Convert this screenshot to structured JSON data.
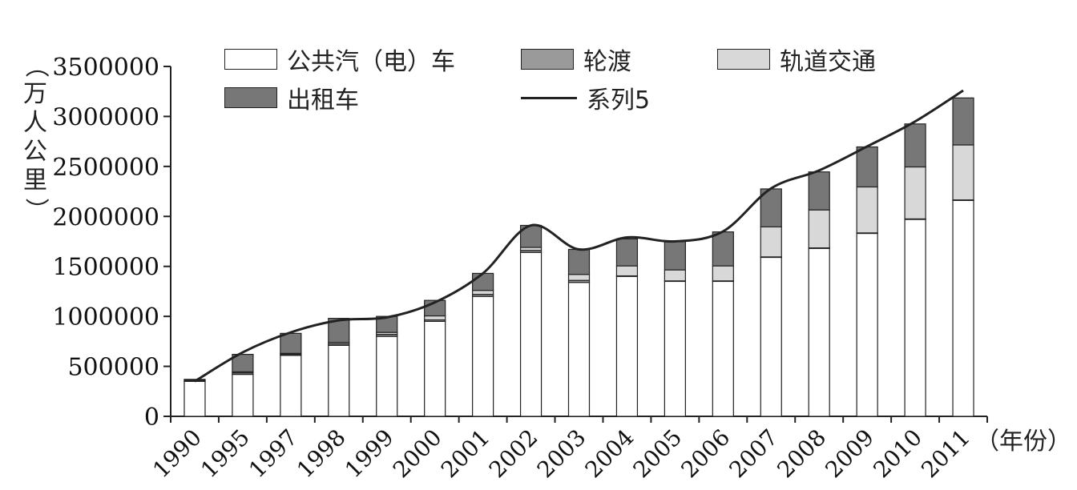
{
  "chart_data": {
    "type": "bar",
    "stacked": true,
    "title": "",
    "xlabel": "（年份）",
    "ylabel": "（万人公里）",
    "ylabel_chars": [
      "（",
      "万",
      "人",
      "公",
      "里",
      "）"
    ],
    "ylim": [
      0,
      3500000
    ],
    "yticks": [
      "0",
      "500000",
      "1000000",
      "1500000",
      "2000000",
      "2500000",
      "3000000",
      "3500000"
    ],
    "categories": [
      "1990",
      "1995",
      "1997",
      "1998",
      "1999",
      "2000",
      "2001",
      "2002",
      "2003",
      "2004",
      "2005",
      "2006",
      "2007",
      "2008",
      "2009",
      "2010",
      "2011"
    ],
    "series": [
      {
        "name": "公共汽（电）车",
        "color": "#ffffff",
        "values": [
          350000,
          420000,
          610000,
          710000,
          800000,
          950000,
          1200000,
          1640000,
          1340000,
          1400000,
          1350000,
          1350000,
          1590000,
          1680000,
          1830000,
          1970000,
          2160000
        ]
      },
      {
        "name": "轮渡",
        "color": "#9a9a9a",
        "values": [
          5000,
          15000,
          10000,
          15000,
          20000,
          15000,
          20000,
          20000,
          20000,
          5000,
          5000,
          5000,
          5000,
          5000,
          5000,
          5000,
          5000
        ]
      },
      {
        "name": "轨道交通",
        "color": "#d8d8d8",
        "values": [
          5000,
          10000,
          10000,
          15000,
          20000,
          40000,
          40000,
          30000,
          60000,
          100000,
          110000,
          150000,
          300000,
          380000,
          460000,
          520000,
          550000
        ]
      },
      {
        "name": "出租车",
        "color": "#777777",
        "values": [
          10000,
          175000,
          200000,
          240000,
          160000,
          155000,
          170000,
          220000,
          250000,
          270000,
          290000,
          340000,
          380000,
          380000,
          400000,
          430000,
          470000
        ]
      },
      {
        "name": "系列5",
        "type": "line",
        "color": "#222222",
        "values": [
          350000,
          640000,
          840000,
          960000,
          990000,
          1140000,
          1430000,
          1910000,
          1670000,
          1790000,
          1750000,
          1850000,
          2280000,
          2460000,
          2700000,
          2950000,
          3260000
        ]
      }
    ],
    "legend": "top",
    "grid": false
  }
}
